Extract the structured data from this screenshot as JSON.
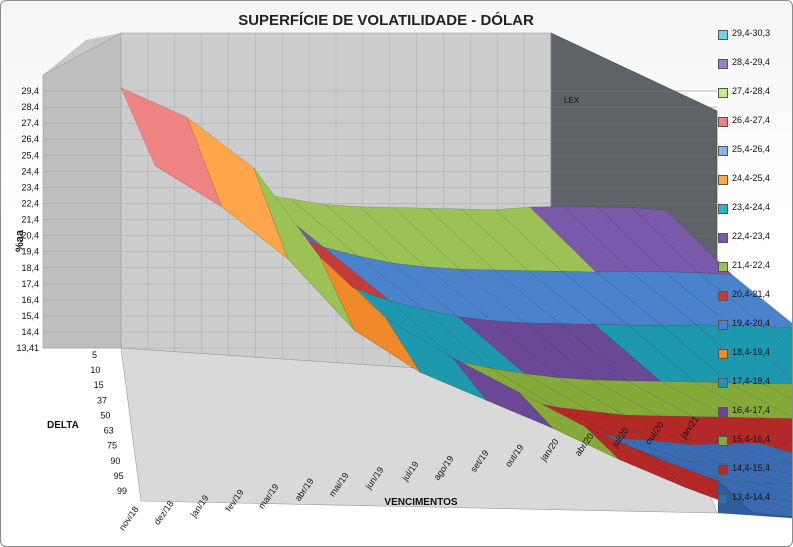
{
  "chart_data": {
    "type": "surface",
    "title": "SUPERFÍCIE DE VOLATILIDADE - DÓLAR",
    "zlabel": "%aa",
    "ylabel": "DELTA",
    "xlabel": "VENCIMENTOS",
    "z_ticks": [
      "13,41",
      "14,4",
      "15,4",
      "16,4",
      "17,4",
      "18,4",
      "19,4",
      "20,4",
      "21,4",
      "22,4",
      "23,4",
      "24,4",
      "25,4",
      "26,4",
      "27,4",
      "28,4",
      "29,4"
    ],
    "zlim": [
      13.41,
      30.3
    ],
    "delta_ticks": [
      "5",
      "10",
      "15",
      "37",
      "50",
      "63",
      "75",
      "90",
      "95",
      "99"
    ],
    "expiries": [
      "nov/18",
      "dez/18",
      "jan/19",
      "fev/19",
      "mar/19",
      "abr/19",
      "mai/19",
      "jun/19",
      "jul/19",
      "ago/19",
      "set/19",
      "out/19",
      "jan/20",
      "abr/20",
      "jul/20",
      "out/20",
      "jan/21"
    ],
    "annotation": "LEX",
    "legend_position": "right",
    "bands": [
      {
        "name": "29,4-30,3",
        "color": "#6dd0ec"
      },
      {
        "name": "28,4-29,4",
        "color": "#9b7fc4"
      },
      {
        "name": "27,4-28,4",
        "color": "#c6ec8c"
      },
      {
        "name": "26,4-27,4",
        "color": "#f08482"
      },
      {
        "name": "25,4-26,4",
        "color": "#8cb4ee"
      },
      {
        "name": "24,4-25,4",
        "color": "#ffa54c"
      },
      {
        "name": "23,4-24,4",
        "color": "#32b0c6"
      },
      {
        "name": "22,4-23,4",
        "color": "#7a58aa"
      },
      {
        "name": "21,4-22,4",
        "color": "#9cc256"
      },
      {
        "name": "20,4-21,4",
        "color": "#c33c3c"
      },
      {
        "name": "19,4-20,4",
        "color": "#4a82cc"
      },
      {
        "name": "18,4-19,4",
        "color": "#f08a28"
      },
      {
        "name": "17,4-18,4",
        "color": "#1e98ae"
      },
      {
        "name": "16,4-17,4",
        "color": "#6a4896"
      },
      {
        "name": "15,4-16,4",
        "color": "#86aa3a"
      },
      {
        "name": "14,4-15,4",
        "color": "#b42828"
      },
      {
        "name": "13,4-14,4",
        "color": "#3a6cb4"
      }
    ],
    "surface_grid": [
      [
        29.6,
        24.9,
        24.6,
        24.8,
        23.6,
        23.4,
        23.2,
        23.2,
        23.3,
        23.4,
        23.5,
        23.6,
        23.9,
        24.1,
        24.2,
        24.3,
        24.3
      ],
      [
        28.9,
        23.5,
        22.7,
        22.0,
        21.4,
        21.0,
        20.7,
        20.6,
        20.6,
        20.7,
        20.8,
        20.9,
        21.0,
        21.2,
        21.3,
        21.4,
        21.4
      ],
      [
        26.9,
        21.4,
        20.6,
        19.8,
        19.2,
        18.8,
        18.5,
        18.4,
        18.4,
        18.5,
        18.6,
        18.7,
        18.8,
        19.0,
        19.1,
        19.2,
        19.2
      ],
      [
        22.5,
        18.1,
        17.6,
        17.0,
        16.6,
        16.3,
        16.1,
        16.0,
        16.0,
        16.1,
        16.2,
        16.3,
        16.4,
        16.5,
        16.6,
        16.6,
        16.6
      ],
      [
        19.8,
        16.6,
        16.1,
        15.6,
        15.3,
        15.0,
        14.9,
        14.8,
        14.9,
        15.0,
        15.1,
        15.2,
        15.3,
        15.4,
        15.4,
        15.5,
        15.5
      ],
      [
        18.5,
        16.0,
        15.5,
        14.9,
        14.5,
        14.2,
        14.2,
        14.1,
        14.3,
        14.5,
        14.6,
        14.7,
        14.8,
        14.9,
        15.0,
        15.0,
        15.0
      ],
      [
        17.5,
        15.4,
        15.0,
        14.5,
        14.1,
        13.9,
        13.9,
        14.0,
        14.2,
        14.4,
        14.5,
        14.6,
        14.7,
        14.8,
        14.9,
        14.9,
        14.9
      ],
      [
        16.5,
        14.6,
        14.3,
        14.0,
        13.8,
        13.7,
        13.8,
        13.9,
        14.1,
        14.3,
        14.4,
        14.5,
        14.6,
        14.7,
        14.8,
        14.8,
        14.8
      ],
      [
        15.8,
        14.0,
        13.9,
        13.7,
        13.6,
        13.5,
        13.6,
        13.8,
        14.0,
        14.2,
        14.3,
        14.4,
        14.5,
        14.6,
        14.7,
        14.7,
        14.7
      ],
      [
        15.4,
        13.6,
        13.5,
        13.5,
        13.5,
        13.4,
        13.6,
        13.8,
        14.0,
        14.1,
        14.2,
        14.3,
        14.4,
        14.5,
        14.6,
        14.6,
        14.6
      ]
    ]
  }
}
